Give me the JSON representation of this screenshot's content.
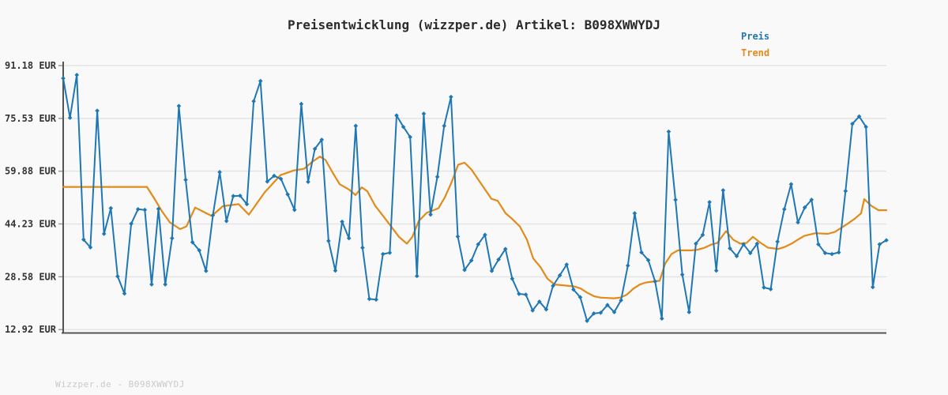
{
  "title": "Preisentwicklung (wizzper.de) Artikel: B098XWWYDJ",
  "footer": "Wizzper.de - B098XWWYDJ",
  "legend": [
    {
      "label": "Preis",
      "color": "#1f77b4"
    },
    {
      "label": "Trend",
      "color": "#e28b1b"
    }
  ],
  "y_axis": {
    "labels": [
      "91.18 EUR",
      "75.53 EUR",
      "59.88 EUR",
      "44.23 EUR",
      "28.58 EUR",
      "12.92 EUR"
    ],
    "values": [
      91.18,
      75.53,
      59.88,
      44.23,
      28.58,
      12.92
    ]
  },
  "colors": {
    "price": "#1f77b4",
    "trend": "#e28b1b",
    "grid": "#e4e4e4",
    "axis": "#555555",
    "background": "#f9f9f9"
  },
  "chart_data": {
    "type": "line",
    "title": "Preisentwicklung (wizzper.de) Artikel: B098XWWYDJ",
    "xlabel": "",
    "ylabel": "EUR",
    "ylim": [
      12.92,
      91.18
    ],
    "grid": true,
    "legend_position": "top-right",
    "series": [
      {
        "name": "Preis",
        "color": "#1f77b4",
        "marker": "diamond",
        "values": [
          87.4,
          75.7,
          88.4,
          39.6,
          37.3,
          77.8,
          41.3,
          48.9,
          28.7,
          23.6,
          44.3,
          48.6,
          48.4,
          26.3,
          48.7,
          26.3,
          40.0,
          79.2,
          57.3,
          38.8,
          36.4,
          30.3,
          46.8,
          59.6,
          45.1,
          52.5,
          52.6,
          50.1,
          80.6,
          86.6,
          56.8,
          58.5,
          57.6,
          53.0,
          48.4,
          79.8,
          56.7,
          66.5,
          69.2,
          39.2,
          30.4,
          44.9,
          40.0,
          73.3,
          37.2,
          22.0,
          21.8,
          35.3,
          35.7,
          76.4,
          73.0,
          70.0,
          28.8,
          76.9,
          47.0,
          58.2,
          73.3,
          81.9,
          40.5,
          30.6,
          33.4,
          38.2,
          41.0,
          30.3,
          33.7,
          36.8,
          28.0,
          23.5,
          23.3,
          18.6,
          21.2,
          18.9,
          25.9,
          29.0,
          32.2,
          24.8,
          22.5,
          15.5,
          17.7,
          17.9,
          20.2,
          18.1,
          21.6,
          31.9,
          47.4,
          35.8,
          33.5,
          27.2,
          16.2,
          71.6,
          51.4,
          29.2,
          18.1,
          38.4,
          41.0,
          50.7,
          30.4,
          54.2,
          37.0,
          34.7,
          38.2,
          35.6,
          38.4,
          25.4,
          24.9,
          39.0,
          48.6,
          56.0,
          44.7,
          49.1,
          51.4,
          38.2,
          35.6,
          35.3,
          35.8,
          54.0,
          73.9,
          76.1,
          73.0,
          25.5,
          38.2,
          39.4
        ]
      },
      {
        "name": "Trend",
        "color": "#e28b1b",
        "marker": "none",
        "points": [
          [
            80,
            55.2
          ],
          [
            186,
            55.2
          ],
          [
            196,
            51.5
          ],
          [
            205,
            48.0
          ],
          [
            215,
            44.7
          ],
          [
            228,
            42.7
          ],
          [
            236,
            43.5
          ],
          [
            247,
            49.1
          ],
          [
            268,
            46.6
          ],
          [
            282,
            49.5
          ],
          [
            302,
            50.1
          ],
          [
            315,
            47.0
          ],
          [
            335,
            53.6
          ],
          [
            355,
            58.7
          ],
          [
            372,
            60.1
          ],
          [
            385,
            60.6
          ],
          [
            395,
            62.6
          ],
          [
            405,
            64.2
          ],
          [
            412,
            63.2
          ],
          [
            422,
            59.1
          ],
          [
            430,
            56.0
          ],
          [
            442,
            54.4
          ],
          [
            450,
            52.8
          ],
          [
            458,
            55.1
          ],
          [
            465,
            53.9
          ],
          [
            475,
            49.6
          ],
          [
            485,
            46.6
          ],
          [
            495,
            43.5
          ],
          [
            505,
            40.4
          ],
          [
            515,
            38.4
          ],
          [
            522,
            40.4
          ],
          [
            530,
            45.1
          ],
          [
            540,
            47.5
          ],
          [
            555,
            48.9
          ],
          [
            563,
            52.1
          ],
          [
            572,
            56.8
          ],
          [
            580,
            61.8
          ],
          [
            588,
            62.4
          ],
          [
            597,
            60.3
          ],
          [
            605,
            57.5
          ],
          [
            613,
            54.8
          ],
          [
            622,
            51.7
          ],
          [
            630,
            51.1
          ],
          [
            640,
            47.4
          ],
          [
            648,
            45.8
          ],
          [
            658,
            43.5
          ],
          [
            667,
            39.6
          ],
          [
            675,
            34.0
          ],
          [
            684,
            31.5
          ],
          [
            693,
            28.0
          ],
          [
            702,
            26.3
          ],
          [
            710,
            26.1
          ],
          [
            727,
            25.7
          ],
          [
            735,
            25.1
          ],
          [
            743,
            23.9
          ],
          [
            752,
            22.8
          ],
          [
            760,
            22.4
          ],
          [
            777,
            22.2
          ],
          [
            785,
            22.4
          ],
          [
            793,
            23.2
          ],
          [
            802,
            25.1
          ],
          [
            810,
            26.3
          ],
          [
            818,
            26.9
          ],
          [
            835,
            27.4
          ],
          [
            842,
            32.5
          ],
          [
            850,
            35.3
          ],
          [
            858,
            36.4
          ],
          [
            875,
            36.4
          ],
          [
            883,
            36.6
          ],
          [
            892,
            37.2
          ],
          [
            900,
            38.1
          ],
          [
            908,
            38.6
          ],
          [
            919,
            42.1
          ],
          [
            928,
            39.6
          ],
          [
            937,
            38.4
          ],
          [
            945,
            38.6
          ],
          [
            953,
            40.4
          ],
          [
            963,
            38.6
          ],
          [
            972,
            37.2
          ],
          [
            985,
            36.8
          ],
          [
            993,
            37.4
          ],
          [
            1002,
            38.4
          ],
          [
            1010,
            39.6
          ],
          [
            1018,
            40.7
          ],
          [
            1032,
            41.5
          ],
          [
            1048,
            41.3
          ],
          [
            1057,
            41.9
          ],
          [
            1065,
            43.1
          ],
          [
            1073,
            44.3
          ],
          [
            1082,
            45.8
          ],
          [
            1090,
            47.4
          ],
          [
            1094,
            51.6
          ],
          [
            1103,
            49.6
          ],
          [
            1112,
            48.3
          ],
          [
            1122,
            48.3
          ]
        ]
      }
    ]
  }
}
